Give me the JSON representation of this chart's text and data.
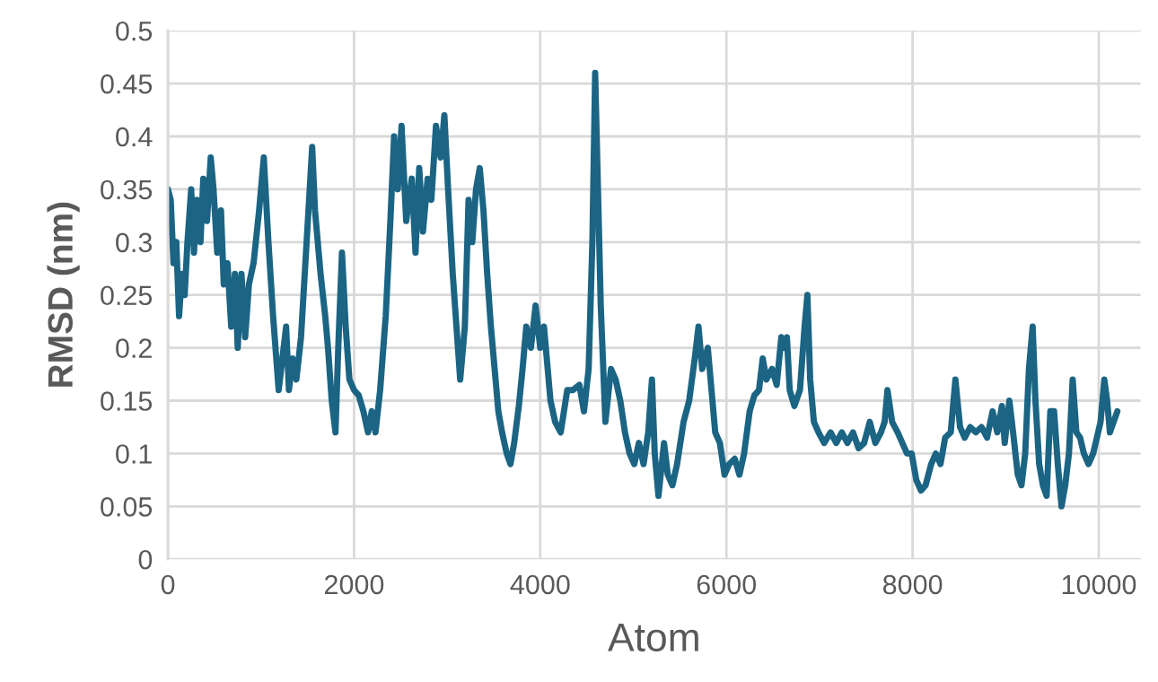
{
  "chart_data": {
    "type": "line",
    "xlabel": "Atom",
    "ylabel": "RMSD (nm)",
    "xlim": [
      0,
      10450
    ],
    "xticks": [
      0,
      2000,
      4000,
      6000,
      8000,
      10000
    ],
    "ylim": [
      0,
      0.5
    ],
    "yticks": [
      0,
      0.05,
      0.1,
      0.15,
      0.2,
      0.25,
      0.3,
      0.35,
      0.4,
      0.45,
      0.5
    ],
    "grid": true,
    "marker": "none",
    "line_style": "solid",
    "series": [
      {
        "color": "#1b6483",
        "x": [
          0,
          30,
          60,
          90,
          120,
          150,
          180,
          210,
          250,
          280,
          310,
          350,
          380,
          420,
          460,
          490,
          530,
          570,
          600,
          640,
          680,
          720,
          750,
          790,
          830,
          870,
          920,
          980,
          1030,
          1080,
          1130,
          1190,
          1230,
          1270,
          1300,
          1340,
          1380,
          1430,
          1490,
          1550,
          1580,
          1640,
          1690,
          1720,
          1760,
          1800,
          1830,
          1870,
          1910,
          1950,
          2000,
          2050,
          2100,
          2150,
          2190,
          2230,
          2280,
          2340,
          2390,
          2430,
          2470,
          2510,
          2560,
          2620,
          2660,
          2700,
          2740,
          2790,
          2830,
          2880,
          2930,
          2970,
          3010,
          3060,
          3100,
          3140,
          3190,
          3230,
          3270,
          3310,
          3350,
          3390,
          3430,
          3470,
          3510,
          3550,
          3590,
          3640,
          3680,
          3720,
          3770,
          3810,
          3850,
          3900,
          3950,
          4000,
          4040,
          4070,
          4110,
          4160,
          4220,
          4290,
          4350,
          4420,
          4470,
          4520,
          4560,
          4590,
          4620,
          4650,
          4700,
          4760,
          4810,
          4860,
          4910,
          4960,
          5010,
          5060,
          5110,
          5160,
          5200,
          5230,
          5270,
          5330,
          5370,
          5420,
          5470,
          5540,
          5600,
          5660,
          5700,
          5740,
          5800,
          5840,
          5880,
          5930,
          5980,
          6030,
          6090,
          6140,
          6190,
          6250,
          6300,
          6350,
          6390,
          6430,
          6490,
          6540,
          6590,
          6620,
          6650,
          6680,
          6730,
          6790,
          6840,
          6870,
          6900,
          6940,
          6990,
          7050,
          7120,
          7180,
          7240,
          7300,
          7360,
          7420,
          7480,
          7540,
          7600,
          7660,
          7700,
          7730,
          7780,
          7840,
          7890,
          7940,
          7990,
          8040,
          8090,
          8140,
          8200,
          8250,
          8300,
          8350,
          8410,
          8460,
          8510,
          8560,
          8620,
          8680,
          8740,
          8800,
          8860,
          8910,
          8960,
          8990,
          9040,
          9080,
          9130,
          9170,
          9210,
          9250,
          9290,
          9320,
          9360,
          9400,
          9440,
          9480,
          9520,
          9560,
          9600,
          9640,
          9680,
          9720,
          9760,
          9800,
          9840,
          9890,
          9940,
          9980,
          10020,
          10060,
          10090,
          10120,
          10160,
          10200
        ],
        "values": [
          0.35,
          0.34,
          0.28,
          0.3,
          0.23,
          0.27,
          0.25,
          0.3,
          0.35,
          0.29,
          0.34,
          0.3,
          0.36,
          0.32,
          0.38,
          0.35,
          0.29,
          0.33,
          0.26,
          0.28,
          0.22,
          0.27,
          0.2,
          0.27,
          0.21,
          0.26,
          0.28,
          0.33,
          0.38,
          0.3,
          0.23,
          0.16,
          0.19,
          0.22,
          0.16,
          0.19,
          0.17,
          0.21,
          0.3,
          0.39,
          0.33,
          0.27,
          0.23,
          0.2,
          0.15,
          0.12,
          0.2,
          0.29,
          0.22,
          0.17,
          0.16,
          0.155,
          0.14,
          0.12,
          0.14,
          0.12,
          0.16,
          0.23,
          0.32,
          0.4,
          0.35,
          0.41,
          0.32,
          0.36,
          0.29,
          0.37,
          0.31,
          0.36,
          0.34,
          0.41,
          0.38,
          0.42,
          0.35,
          0.27,
          0.22,
          0.17,
          0.22,
          0.34,
          0.3,
          0.35,
          0.37,
          0.33,
          0.27,
          0.22,
          0.18,
          0.14,
          0.12,
          0.1,
          0.09,
          0.11,
          0.145,
          0.18,
          0.22,
          0.2,
          0.24,
          0.2,
          0.22,
          0.19,
          0.15,
          0.13,
          0.12,
          0.16,
          0.16,
          0.165,
          0.14,
          0.18,
          0.3,
          0.46,
          0.35,
          0.24,
          0.13,
          0.18,
          0.17,
          0.15,
          0.12,
          0.1,
          0.09,
          0.11,
          0.09,
          0.12,
          0.17,
          0.1,
          0.06,
          0.11,
          0.08,
          0.07,
          0.09,
          0.13,
          0.15,
          0.19,
          0.22,
          0.18,
          0.2,
          0.16,
          0.12,
          0.11,
          0.08,
          0.09,
          0.095,
          0.08,
          0.1,
          0.14,
          0.155,
          0.16,
          0.19,
          0.17,
          0.18,
          0.165,
          0.21,
          0.2,
          0.21,
          0.16,
          0.145,
          0.16,
          0.22,
          0.25,
          0.17,
          0.13,
          0.12,
          0.11,
          0.12,
          0.11,
          0.12,
          0.11,
          0.12,
          0.105,
          0.11,
          0.13,
          0.11,
          0.12,
          0.13,
          0.16,
          0.13,
          0.12,
          0.11,
          0.1,
          0.1,
          0.075,
          0.065,
          0.07,
          0.09,
          0.1,
          0.09,
          0.115,
          0.12,
          0.17,
          0.125,
          0.115,
          0.125,
          0.12,
          0.125,
          0.115,
          0.14,
          0.12,
          0.145,
          0.11,
          0.15,
          0.12,
          0.08,
          0.07,
          0.1,
          0.18,
          0.22,
          0.15,
          0.09,
          0.07,
          0.06,
          0.14,
          0.14,
          0.09,
          0.05,
          0.07,
          0.1,
          0.17,
          0.12,
          0.115,
          0.1,
          0.09,
          0.1,
          0.115,
          0.13,
          0.17,
          0.15,
          0.12,
          0.13,
          0.14
        ]
      }
    ]
  }
}
